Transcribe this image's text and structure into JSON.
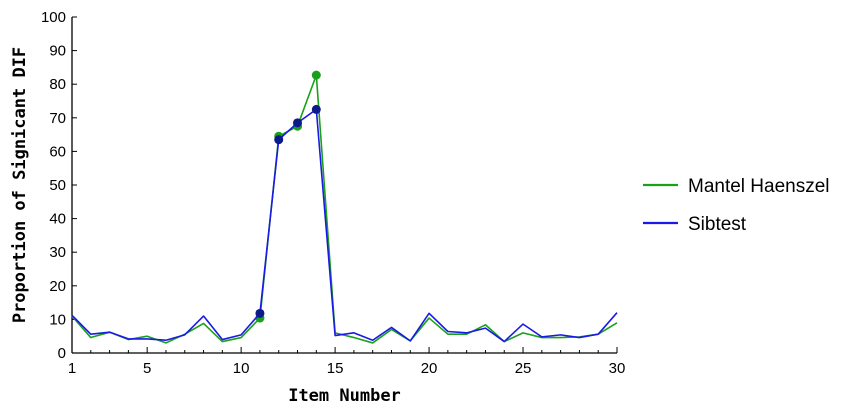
{
  "chart_data": {
    "type": "line",
    "title": "",
    "xlabel": "Item Number",
    "ylabel": "Proportion of Signicant DIF",
    "xlim": [
      1,
      30
    ],
    "ylim": [
      0,
      100
    ],
    "x_ticks": [
      1,
      5,
      10,
      15,
      20,
      25,
      30
    ],
    "y_ticks": [
      0,
      10,
      20,
      30,
      40,
      50,
      60,
      70,
      80,
      90,
      100
    ],
    "grid": false,
    "legend_position": "right",
    "x": [
      1,
      2,
      3,
      4,
      5,
      6,
      7,
      8,
      9,
      10,
      11,
      12,
      13,
      14,
      15,
      16,
      17,
      18,
      19,
      20,
      21,
      22,
      23,
      24,
      25,
      26,
      27,
      28,
      29,
      30
    ],
    "series": [
      {
        "name": "Mantel Haenszel",
        "color": "#1aa11a",
        "values": [
          11.0,
          4.6,
          6.2,
          4.0,
          5.0,
          3.0,
          5.6,
          8.8,
          3.4,
          4.6,
          10.4,
          64.5,
          67.5,
          82.7,
          6.0,
          4.6,
          3.0,
          7.0,
          3.6,
          10.4,
          5.6,
          5.6,
          8.4,
          3.4,
          6.0,
          4.6,
          4.6,
          4.8,
          5.6,
          9.0
        ],
        "marker_points": [
          11,
          12,
          13,
          14
        ]
      },
      {
        "name": "Sibtest",
        "color": "#1a1ae6",
        "values": [
          11.2,
          5.6,
          6.2,
          4.2,
          4.2,
          3.8,
          5.4,
          11.0,
          4.0,
          5.4,
          11.8,
          63.5,
          68.5,
          72.5,
          5.2,
          6.0,
          3.8,
          7.6,
          3.6,
          11.8,
          6.4,
          6.0,
          7.4,
          3.4,
          8.6,
          4.8,
          5.4,
          4.6,
          5.6,
          12.0
        ],
        "marker_points": [
          11,
          12,
          13,
          14
        ]
      }
    ]
  }
}
